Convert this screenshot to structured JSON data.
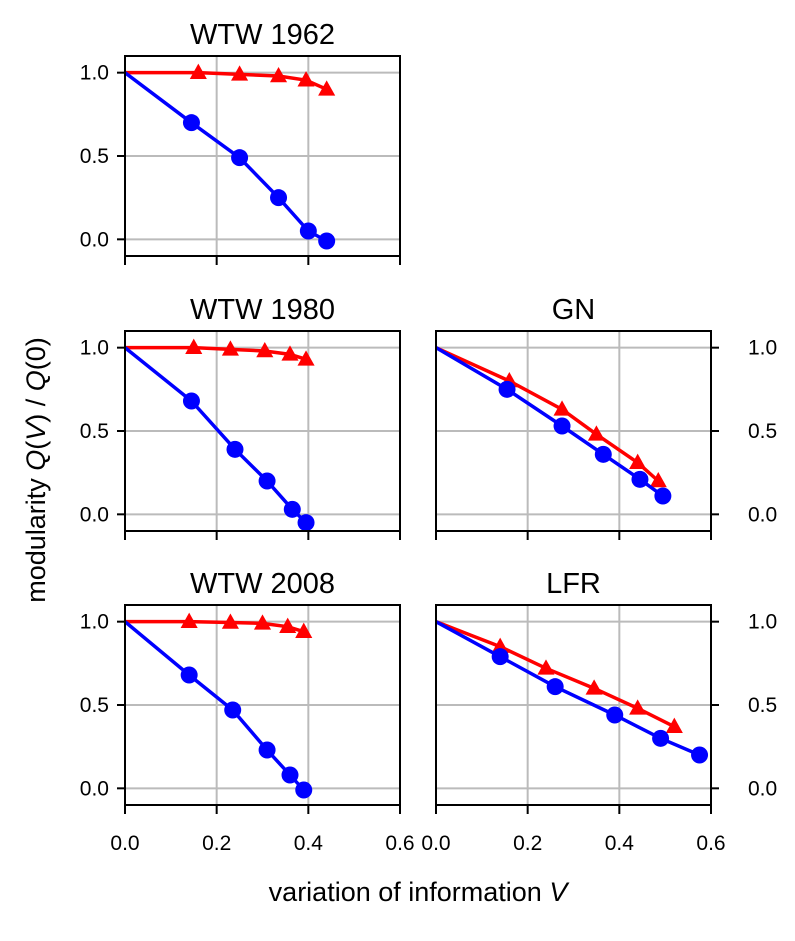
{
  "chart_data": {
    "type": "line",
    "ylabel_parts": [
      "modularity ",
      "Q",
      "(",
      "V",
      ") / ",
      "Q",
      "(0)"
    ],
    "xlabel_parts": [
      "variation of information ",
      "V"
    ],
    "xlim": [
      0,
      0.6
    ],
    "ylim": [
      -0.1,
      1.1
    ],
    "xticks": [
      "0.0",
      "0.2",
      "0.4",
      "0.6"
    ],
    "xticks_bottom_right": [
      "0.0",
      "0.2",
      "0.4",
      "0.6"
    ],
    "yticks": [
      "1.0",
      "0.5",
      "0.0"
    ],
    "grid": true,
    "colors": {
      "triangle_series": "#ff0000",
      "circle_series": "#0000ff"
    },
    "panels": [
      {
        "title": "WTW 1962",
        "series": [
          {
            "marker": "triangle",
            "color": "#ff0000",
            "x": [
              0,
              0.16,
              0.25,
              0.335,
              0.395,
              0.44
            ],
            "y": [
              1.0,
              1.0,
              0.99,
              0.98,
              0.955,
              0.9
            ]
          },
          {
            "marker": "circle",
            "color": "#0000ff",
            "x": [
              0,
              0.145,
              0.25,
              0.335,
              0.4,
              0.44
            ],
            "y": [
              1.0,
              0.7,
              0.49,
              0.25,
              0.05,
              -0.01
            ]
          }
        ]
      },
      {
        "title": "WTW 1980",
        "series": [
          {
            "marker": "triangle",
            "color": "#ff0000",
            "x": [
              0,
              0.15,
              0.23,
              0.305,
              0.36,
              0.395
            ],
            "y": [
              1.0,
              1.0,
              0.99,
              0.98,
              0.96,
              0.93
            ]
          },
          {
            "marker": "circle",
            "color": "#0000ff",
            "x": [
              0,
              0.145,
              0.24,
              0.31,
              0.365,
              0.395
            ],
            "y": [
              1.0,
              0.68,
              0.39,
              0.2,
              0.03,
              -0.05
            ]
          }
        ]
      },
      {
        "title": "GN",
        "series": [
          {
            "marker": "triangle",
            "color": "#ff0000",
            "x": [
              0,
              0.16,
              0.275,
              0.35,
              0.44,
              0.485
            ],
            "y": [
              1.0,
              0.8,
              0.63,
              0.48,
              0.31,
              0.2
            ]
          },
          {
            "marker": "circle",
            "color": "#0000ff",
            "x": [
              0,
              0.155,
              0.275,
              0.365,
              0.445,
              0.495
            ],
            "y": [
              1.0,
              0.75,
              0.53,
              0.36,
              0.21,
              0.11
            ]
          }
        ]
      },
      {
        "title": "WTW 2008",
        "series": [
          {
            "marker": "triangle",
            "color": "#ff0000",
            "x": [
              0,
              0.14,
              0.23,
              0.3,
              0.355,
              0.39
            ],
            "y": [
              1.0,
              1.0,
              0.995,
              0.99,
              0.97,
              0.94
            ]
          },
          {
            "marker": "circle",
            "color": "#0000ff",
            "x": [
              0,
              0.14,
              0.235,
              0.31,
              0.36,
              0.39
            ],
            "y": [
              1.0,
              0.68,
              0.47,
              0.23,
              0.08,
              -0.01
            ]
          }
        ]
      },
      {
        "title": "LFR",
        "series": [
          {
            "marker": "triangle",
            "color": "#ff0000",
            "x": [
              0,
              0.14,
              0.24,
              0.345,
              0.44,
              0.52
            ],
            "y": [
              1.0,
              0.85,
              0.72,
              0.6,
              0.48,
              0.37
            ]
          },
          {
            "marker": "circle",
            "color": "#0000ff",
            "x": [
              0,
              0.14,
              0.26,
              0.39,
              0.49,
              0.575
            ],
            "y": [
              1.0,
              0.79,
              0.61,
              0.44,
              0.3,
              0.2
            ]
          }
        ]
      }
    ]
  }
}
